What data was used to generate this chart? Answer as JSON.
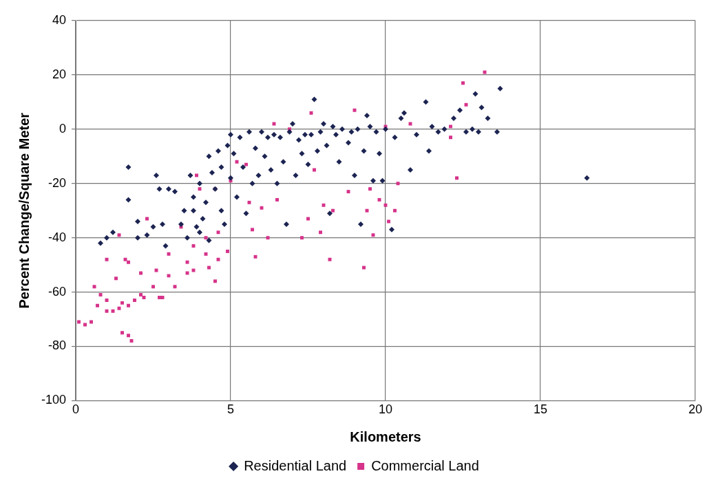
{
  "chart_data": {
    "type": "scatter",
    "xlabel": "Kilometers",
    "ylabel": "Percent Change/Square Meter",
    "xlim": [
      0,
      20
    ],
    "xticks": [
      0,
      5,
      10,
      15,
      20
    ],
    "ylim": [
      -100,
      40
    ],
    "yticks": [
      -100,
      -80,
      -60,
      -40,
      -20,
      0,
      20,
      40
    ],
    "grid": true,
    "legend": "bottom",
    "series": [
      {
        "name": "Residential Land",
        "color": "#1c2452",
        "marker": "diamond",
        "x": [
          0.8,
          1.0,
          1.2,
          1.7,
          1.7,
          2.0,
          2.0,
          2.3,
          2.5,
          2.6,
          2.7,
          2.8,
          2.9,
          3.0,
          3.2,
          3.4,
          3.5,
          3.6,
          3.7,
          3.8,
          3.8,
          3.9,
          4.0,
          4.0,
          4.1,
          4.2,
          4.3,
          4.3,
          4.4,
          4.5,
          4.6,
          4.7,
          4.7,
          4.8,
          4.9,
          5.0,
          5.0,
          5.1,
          5.2,
          5.3,
          5.4,
          5.5,
          5.6,
          5.7,
          5.8,
          5.9,
          6.0,
          6.1,
          6.2,
          6.3,
          6.4,
          6.5,
          6.6,
          6.7,
          6.8,
          6.9,
          7.0,
          7.1,
          7.2,
          7.3,
          7.4,
          7.5,
          7.6,
          7.7,
          7.8,
          7.9,
          8.0,
          8.1,
          8.2,
          8.3,
          8.4,
          8.5,
          8.6,
          8.8,
          8.9,
          9.0,
          9.1,
          9.2,
          9.3,
          9.4,
          9.5,
          9.6,
          9.7,
          9.8,
          9.9,
          10.0,
          10.2,
          10.3,
          10.5,
          10.6,
          10.8,
          11.0,
          11.3,
          11.4,
          11.5,
          11.7,
          11.9,
          12.2,
          12.4,
          12.6,
          12.8,
          12.9,
          13.1,
          13.0,
          13.3,
          13.6,
          13.7,
          16.5
        ],
        "values": [
          -42,
          -40,
          -38,
          -14,
          -26,
          -34,
          -40,
          -39,
          -36,
          -17,
          -22,
          -35,
          -43,
          -22,
          -23,
          -35,
          -30,
          -40,
          -17,
          -25,
          -30,
          -36,
          -20,
          -38,
          -33,
          -27,
          -10,
          -41,
          -16,
          -22,
          -8,
          -14,
          -30,
          -35,
          -6,
          -2,
          -18,
          -9,
          -25,
          -3,
          -14,
          -31,
          -1,
          -20,
          -7,
          -17,
          -1,
          -10,
          -3,
          -15,
          -2,
          -20,
          -3,
          -12,
          -35,
          -1,
          2,
          -17,
          -4,
          -9,
          -2,
          -13,
          -2,
          11,
          -8,
          -1,
          2,
          -6,
          -31,
          1,
          -2,
          -12,
          0,
          -5,
          -1,
          -17,
          0,
          -35,
          -8,
          5,
          1,
          -19,
          -1,
          -9,
          -19,
          0,
          -37,
          -3,
          4,
          6,
          -15,
          -2,
          10,
          -8,
          1,
          -1,
          0,
          4,
          7,
          -1,
          0,
          13,
          8,
          -1,
          4,
          -1,
          15,
          -18
        ]
      },
      {
        "name": "Commercial Land",
        "color": "#d6338a",
        "marker": "square",
        "x": [
          0.1,
          0.3,
          0.5,
          0.6,
          0.8,
          0.7,
          1.0,
          1.0,
          1.2,
          1.0,
          1.3,
          1.4,
          1.4,
          1.5,
          1.5,
          1.6,
          1.7,
          1.7,
          1.7,
          1.8,
          1.9,
          2.1,
          2.1,
          2.2,
          2.3,
          2.5,
          2.6,
          2.7,
          2.8,
          3.0,
          3.0,
          3.2,
          3.4,
          3.6,
          3.6,
          3.8,
          3.8,
          3.9,
          4.2,
          4.2,
          4.3,
          4.5,
          4.6,
          4.5,
          4.6,
          4.9,
          5.2,
          5.5,
          5.6,
          5.7,
          5.8,
          6.0,
          6.2,
          6.4,
          6.5,
          7.3,
          7.5,
          7.6,
          7.7,
          7.9,
          8.0,
          8.2,
          8.3,
          8.8,
          9.0,
          9.3,
          9.4,
          9.5,
          9.6,
          9.8,
          10.0,
          10.0,
          10.1,
          10.3,
          10.4,
          10.8,
          12.1,
          12.1,
          12.3,
          12.5,
          12.6,
          13.2,
          5.0,
          4.0,
          6.9
        ],
        "values": [
          -71,
          -72,
          -71,
          -58,
          -61,
          -65,
          -63,
          -67,
          -67,
          -48,
          -55,
          -39,
          -66,
          -64,
          -75,
          -48,
          -49,
          -65,
          -76,
          -78,
          -63,
          -53,
          -61,
          -62,
          -33,
          -58,
          -52,
          -62,
          -62,
          -46,
          -54,
          -58,
          -36,
          -53,
          -49,
          -43,
          -52,
          -17,
          -40,
          -46,
          -51,
          -56,
          -48,
          -22,
          -38,
          -45,
          -12,
          -13,
          -27,
          -37,
          -47,
          -29,
          -40,
          2,
          -26,
          -40,
          -33,
          6,
          -15,
          -38,
          -28,
          -48,
          -30,
          -23,
          7,
          -51,
          -30,
          -22,
          -39,
          -26,
          1,
          -28,
          -34,
          -30,
          -20,
          2,
          -3,
          1,
          -18,
          17,
          9,
          21,
          -19,
          -22,
          0
        ]
      }
    ]
  }
}
